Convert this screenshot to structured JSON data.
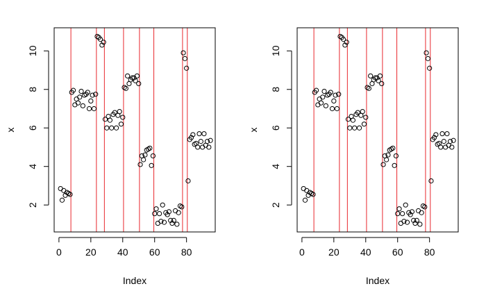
{
  "chart_data": [
    {
      "type": "scatter",
      "title": "",
      "xlabel": "Index",
      "ylabel": "x",
      "xlim": [
        -3,
        98
      ],
      "ylim": [
        0.6,
        11.2
      ],
      "xticks": [
        0,
        20,
        40,
        60,
        80
      ],
      "yticks": [
        2,
        4,
        6,
        8,
        10
      ],
      "grid": false,
      "legend": "none",
      "point_color": "#000000",
      "vline_color": "#e8272d",
      "vlines": [
        7.5,
        23.5,
        28.5,
        40.5,
        50.5,
        59.5,
        77.5,
        80.5
      ],
      "y": [
        2.85,
        2.25,
        2.75,
        2.5,
        2.65,
        2.6,
        2.55,
        7.85,
        7.95,
        7.2,
        7.5,
        7.3,
        7.6,
        7.9,
        7.15,
        7.7,
        7.75,
        7.85,
        7.0,
        7.4,
        7.7,
        7.0,
        7.75,
        10.75,
        10.7,
        10.6,
        10.3,
        10.45,
        6.45,
        6.0,
        6.6,
        6.4,
        6.0,
        6.7,
        6.8,
        6.0,
        6.65,
        6.85,
        6.2,
        6.55,
        8.1,
        8.05,
        8.7,
        8.3,
        8.5,
        8.6,
        8.6,
        8.45,
        8.7,
        8.3,
        4.1,
        4.55,
        4.35,
        4.6,
        4.85,
        4.9,
        4.95,
        4.05,
        4.55,
        1.55,
        1.8,
        1.05,
        1.55,
        1.15,
        2.0,
        1.1,
        1.6,
        1.5,
        1.65,
        1.2,
        1.05,
        1.2,
        1.7,
        1.0,
        1.6,
        1.95,
        1.9,
        9.9,
        9.6,
        9.1,
        3.25,
        5.4,
        5.5,
        5.65,
        5.15,
        5.2,
        5.0,
        5.7,
        5.3,
        5.0,
        5.7,
        5.1,
        5.3,
        5.0,
        5.35
      ]
    },
    {
      "type": "scatter",
      "title": "",
      "xlabel": "Index",
      "ylabel": "x",
      "xlim": [
        -3,
        98
      ],
      "ylim": [
        0.6,
        11.2
      ],
      "xticks": [
        0,
        20,
        40,
        60,
        80
      ],
      "yticks": [
        2,
        4,
        6,
        8,
        10
      ],
      "grid": false,
      "legend": "none",
      "point_color": "#000000",
      "vline_color": "#e8272d",
      "vlines": [
        7.5,
        23.5,
        28.5,
        40.5,
        50.5,
        59.5,
        77.5,
        80.5
      ],
      "y": [
        2.85,
        2.25,
        2.75,
        2.5,
        2.65,
        2.6,
        2.55,
        7.85,
        7.95,
        7.2,
        7.5,
        7.3,
        7.6,
        7.9,
        7.15,
        7.7,
        7.75,
        7.85,
        7.0,
        7.4,
        7.7,
        7.0,
        7.75,
        10.75,
        10.7,
        10.6,
        10.3,
        10.45,
        6.45,
        6.0,
        6.6,
        6.4,
        6.0,
        6.7,
        6.8,
        6.0,
        6.65,
        6.85,
        6.2,
        6.55,
        8.1,
        8.05,
        8.7,
        8.3,
        8.5,
        8.6,
        8.6,
        8.45,
        8.7,
        8.3,
        4.1,
        4.55,
        4.35,
        4.6,
        4.85,
        4.9,
        4.95,
        4.05,
        4.55,
        1.55,
        1.8,
        1.05,
        1.55,
        1.15,
        2.0,
        1.1,
        1.6,
        1.5,
        1.65,
        1.2,
        1.05,
        1.2,
        1.7,
        1.0,
        1.6,
        1.95,
        1.9,
        9.9,
        9.6,
        9.1,
        3.25,
        5.4,
        5.5,
        5.65,
        5.15,
        5.2,
        5.0,
        5.7,
        5.3,
        5.0,
        5.7,
        5.1,
        5.3,
        5.0,
        5.35
      ]
    }
  ]
}
